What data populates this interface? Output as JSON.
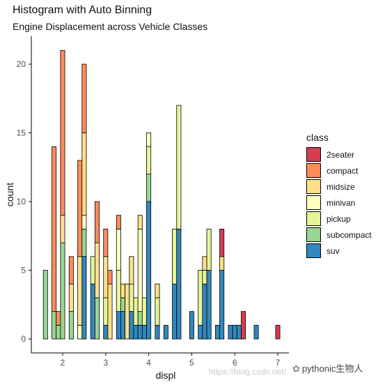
{
  "chart_data": {
    "type": "bar",
    "stacked": true,
    "title": "Histogram with Auto Binning",
    "subtitle": "Engine Displacement across Vehicle Classes",
    "xlabel": "displ",
    "ylabel": "count",
    "xlim": [
      1.3,
      7.3
    ],
    "ylim": [
      0,
      22
    ],
    "x_ticks": [
      2,
      3,
      4,
      5,
      6,
      7
    ],
    "y_ticks": [
      0,
      5,
      10,
      15,
      20
    ],
    "bin_width": 0.1,
    "legend_title": "class",
    "legend_position": "right",
    "series_order": [
      "suv",
      "subcompact",
      "pickup",
      "minivan",
      "midsize",
      "compact",
      "2seater"
    ],
    "colors": {
      "2seater": "#d53e4f",
      "compact": "#fc8d59",
      "midsize": "#fee08b",
      "minivan": "#ffffbf",
      "pickup": "#e6f598",
      "subcompact": "#99d594",
      "suv": "#3288bd"
    },
    "bins": [
      {
        "x": 1.6,
        "subcompact": 5
      },
      {
        "x": 1.8,
        "subcompact": 2,
        "compact": 12
      },
      {
        "x": 1.9,
        "subcompact": 1,
        "compact": 1
      },
      {
        "x": 2.0,
        "subcompact": 7,
        "midsize": 2,
        "compact": 12
      },
      {
        "x": 2.2,
        "subcompact": 2,
        "midsize": 2,
        "compact": 2
      },
      {
        "x": 2.4,
        "minivan": 1,
        "midsize": 5,
        "compact": 7
      },
      {
        "x": 2.5,
        "suv": 6,
        "subcompact": 2,
        "midsize": 6,
        "minivan": 1,
        "compact": 5
      },
      {
        "x": 2.7,
        "suv": 4,
        "pickup": 2
      },
      {
        "x": 2.8,
        "subcompact": 3,
        "midsize": 4,
        "compact": 3
      },
      {
        "x": 3.0,
        "suv": 1,
        "pickup": 2,
        "midsize": 3,
        "compact": 2
      },
      {
        "x": 3.1,
        "midsize": 4,
        "compact": 1
      },
      {
        "x": 3.3,
        "suv": 2,
        "pickup": 3,
        "minivan": 3,
        "compact": 1
      },
      {
        "x": 3.4,
        "suv": 2,
        "subcompact": 1,
        "midsize": 1
      },
      {
        "x": 3.5,
        "midsize": 4
      },
      {
        "x": 3.6,
        "suv": 2,
        "pickup": 2,
        "midsize": 2
      },
      {
        "x": 3.7,
        "suv": 1,
        "pickup": 2
      },
      {
        "x": 3.8,
        "suv": 1,
        "subcompact": 1,
        "minivan": 6,
        "midsize": 1
      },
      {
        "x": 3.9,
        "suv": 1,
        "pickup": 2
      },
      {
        "x": 4.0,
        "suv": 10,
        "subcompact": 2,
        "pickup": 2,
        "minivan": 1
      },
      {
        "x": 4.2,
        "suv": 1,
        "pickup": 2,
        "midsize": 1
      },
      {
        "x": 4.4,
        "suv": 1
      },
      {
        "x": 4.6,
        "suv": 4,
        "pickup": 4
      },
      {
        "x": 4.7,
        "suv": 8,
        "pickup": 9
      },
      {
        "x": 5.0,
        "suv": 2
      },
      {
        "x": 5.2,
        "suv": 1,
        "pickup": 4
      },
      {
        "x": 5.3,
        "suv": 4,
        "pickup": 1,
        "midsize": 1
      },
      {
        "x": 5.4,
        "suv": 5,
        "pickup": 3
      },
      {
        "x": 5.6,
        "suv": 1
      },
      {
        "x": 5.7,
        "suv": 5,
        "midsize": 1,
        "2seater": 2
      },
      {
        "x": 5.9,
        "suv": 1
      },
      {
        "x": 6.0,
        "suv": 1
      },
      {
        "x": 6.1,
        "suv": 1
      },
      {
        "x": 6.2,
        "2seater": 2
      },
      {
        "x": 6.5,
        "suv": 1
      },
      {
        "x": 7.0,
        "2seater": 1
      }
    ]
  },
  "legend": {
    "title": "class",
    "items": [
      "2seater",
      "compact",
      "midsize",
      "minivan",
      "pickup",
      "subcompact",
      "suv"
    ]
  },
  "watermark": "https://blog.csdn.net/",
  "brand": "pythonic生物人"
}
